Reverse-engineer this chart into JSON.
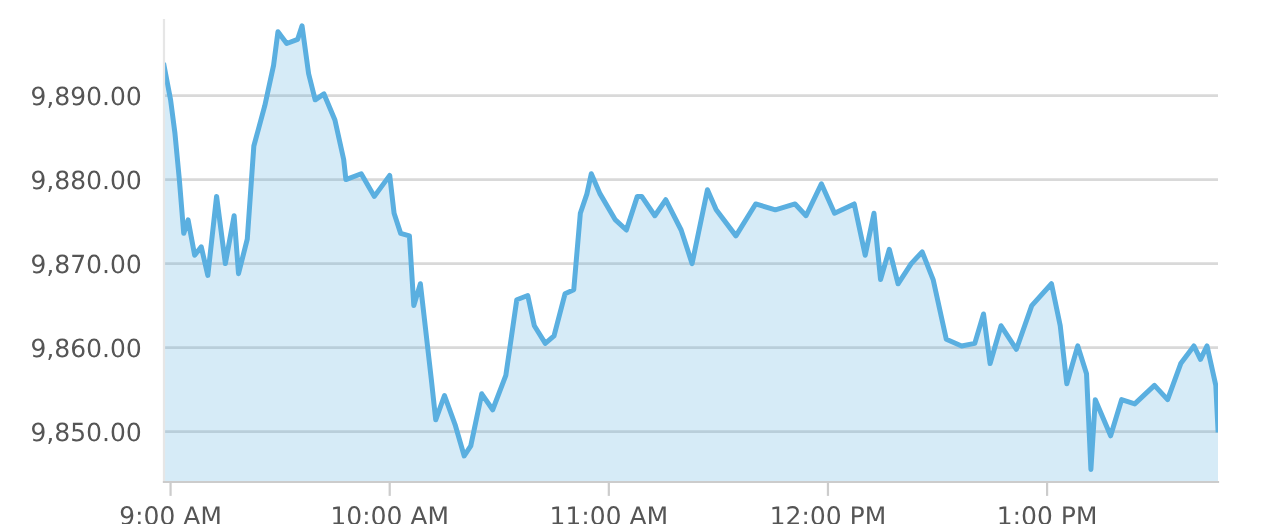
{
  "chart_data": {
    "type": "area",
    "x": [
      8.97,
      9.0,
      9.02,
      9.04,
      9.06,
      9.08,
      9.11,
      9.14,
      9.17,
      9.21,
      9.25,
      9.29,
      9.31,
      9.35,
      9.38,
      9.43,
      9.47,
      9.49,
      9.53,
      9.58,
      9.6,
      9.63,
      9.66,
      9.7,
      9.75,
      9.79,
      9.8,
      9.87,
      9.93,
      10.0,
      10.02,
      10.05,
      10.09,
      10.11,
      10.14,
      10.19,
      10.21,
      10.25,
      10.3,
      10.34,
      10.37,
      10.42,
      10.47,
      10.53,
      10.58,
      10.63,
      10.66,
      10.71,
      10.75,
      10.8,
      10.84,
      10.87,
      10.9,
      10.92,
      10.96,
      11.03,
      11.08,
      11.13,
      11.15,
      11.21,
      11.26,
      11.33,
      11.38,
      11.45,
      11.49,
      11.58,
      11.67,
      11.76,
      11.85,
      11.9,
      11.97,
      12.03,
      12.12,
      12.17,
      12.21,
      12.24,
      12.28,
      12.32,
      12.38,
      12.43,
      12.48,
      12.54,
      12.61,
      12.67,
      12.71,
      12.74,
      12.79,
      12.86,
      12.93,
      13.02,
      13.06,
      13.09,
      13.14,
      13.18,
      13.2,
      13.22,
      13.29,
      13.34,
      13.4,
      13.49,
      13.55,
      13.61,
      13.67,
      13.7,
      13.73,
      13.77,
      13.78
    ],
    "series": [
      {
        "color": "#5aafe0",
        "values": [
          9893.6,
          9889.5,
          9885.5,
          9880.0,
          9873.6,
          9875.2,
          9871.0,
          9872.0,
          9868.6,
          9878.0,
          9870.0,
          9875.7,
          9868.8,
          9872.9,
          9884.0,
          9888.8,
          9893.6,
          9897.6,
          9896.2,
          9896.7,
          9898.3,
          9892.6,
          9889.5,
          9890.2,
          9887.1,
          9882.4,
          9880.0,
          9880.7,
          9878.0,
          9880.5,
          9876.0,
          9873.6,
          9873.3,
          9865.0,
          9867.6,
          9856.2,
          9851.4,
          9854.3,
          9850.7,
          9847.1,
          9848.3,
          9854.5,
          9852.6,
          9856.7,
          9865.7,
          9866.2,
          9862.6,
          9860.5,
          9861.4,
          9866.4,
          9866.9,
          9876.0,
          9878.3,
          9880.7,
          9878.3,
          9875.2,
          9874.0,
          9878.0,
          9878.0,
          9875.7,
          9877.6,
          9874.0,
          9870.0,
          9878.8,
          9876.4,
          9873.3,
          9877.1,
          9876.4,
          9877.1,
          9875.7,
          9879.5,
          9876.0,
          9877.1,
          9871.0,
          9876.0,
          9868.1,
          9871.7,
          9867.6,
          9870.0,
          9871.4,
          9868.1,
          9861.0,
          9860.2,
          9860.5,
          9864.0,
          9858.1,
          9862.6,
          9859.8,
          9865.0,
          9867.6,
          9862.6,
          9855.7,
          9860.2,
          9856.9,
          9845.5,
          9853.8,
          9849.5,
          9853.8,
          9853.3,
          9855.5,
          9853.8,
          9858.1,
          9860.2,
          9858.6,
          9860.2,
          9855.5,
          9850.2
        ]
      }
    ],
    "xlim": [
      8.97,
      13.78
    ],
    "xticks": [
      {
        "value": 9,
        "label": "9:00 AM"
      },
      {
        "value": 10,
        "label": "10:00 AM"
      },
      {
        "value": 11,
        "label": "11:00 AM"
      },
      {
        "value": 12,
        "label": "12:00 PM"
      },
      {
        "value": 13,
        "label": "1:00 PM"
      }
    ],
    "ylim": [
      9844,
      9899
    ],
    "yticks": [
      {
        "value": 9850,
        "label": "9,850.00"
      },
      {
        "value": 9860,
        "label": "9,860.00"
      },
      {
        "value": 9870,
        "label": "9,870.00"
      },
      {
        "value": 9880,
        "label": "9,880.00"
      },
      {
        "value": 9890,
        "label": "9,890.00"
      }
    ],
    "grid": "y",
    "legend": false,
    "marker": "none",
    "line_style": "solid"
  }
}
